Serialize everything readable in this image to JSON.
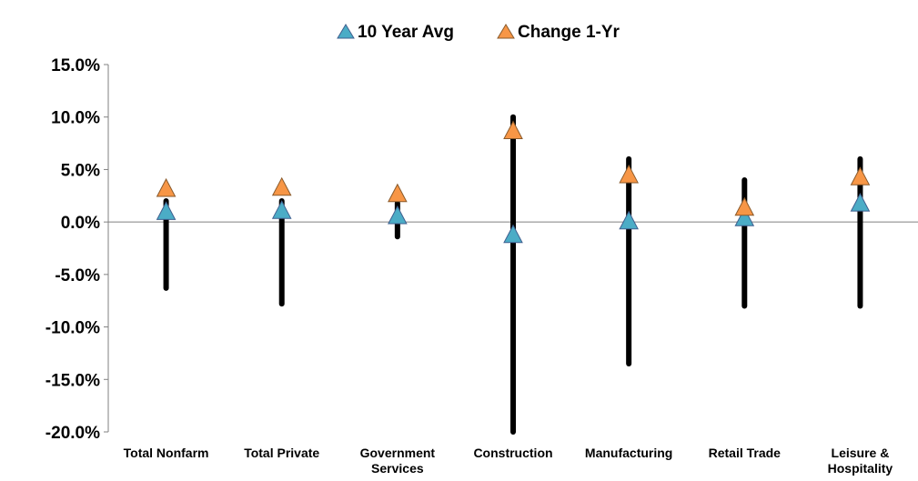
{
  "chart_data": {
    "type": "scatter",
    "categories": [
      [
        "Total Nonfarm"
      ],
      [
        "Total Private"
      ],
      [
        "Government",
        "Services"
      ],
      [
        "Construction"
      ],
      [
        "Manufacturing"
      ],
      [
        "Retail Trade"
      ],
      [
        "Leisure &",
        "Hospitality"
      ]
    ],
    "range_low": [
      -6.3,
      -7.8,
      -1.4,
      -20.0,
      -13.5,
      -8.0,
      -8.0
    ],
    "range_high": [
      2.0,
      2.0,
      1.8,
      10.0,
      6.0,
      4.0,
      6.0
    ],
    "series": [
      {
        "name": "10 Year Avg",
        "values": [
          0.9,
          1.0,
          0.5,
          -1.3,
          0.0,
          0.3,
          1.7
        ],
        "color": "#4BACC6"
      },
      {
        "name": "Change 1-Yr",
        "values": [
          3.1,
          3.2,
          2.6,
          8.6,
          4.4,
          1.3,
          4.2
        ],
        "color": "#F79646"
      }
    ],
    "yticks": [
      "15.0%",
      "10.0%",
      "5.0%",
      "0.0%",
      "-5.0%",
      "-10.0%",
      "-15.0%",
      "-20.0%"
    ],
    "ytick_values": [
      15,
      10,
      5,
      0,
      -5,
      -10,
      -15,
      -20
    ],
    "ylim": [
      -20,
      15
    ],
    "legend_position": "top",
    "grid": false
  }
}
